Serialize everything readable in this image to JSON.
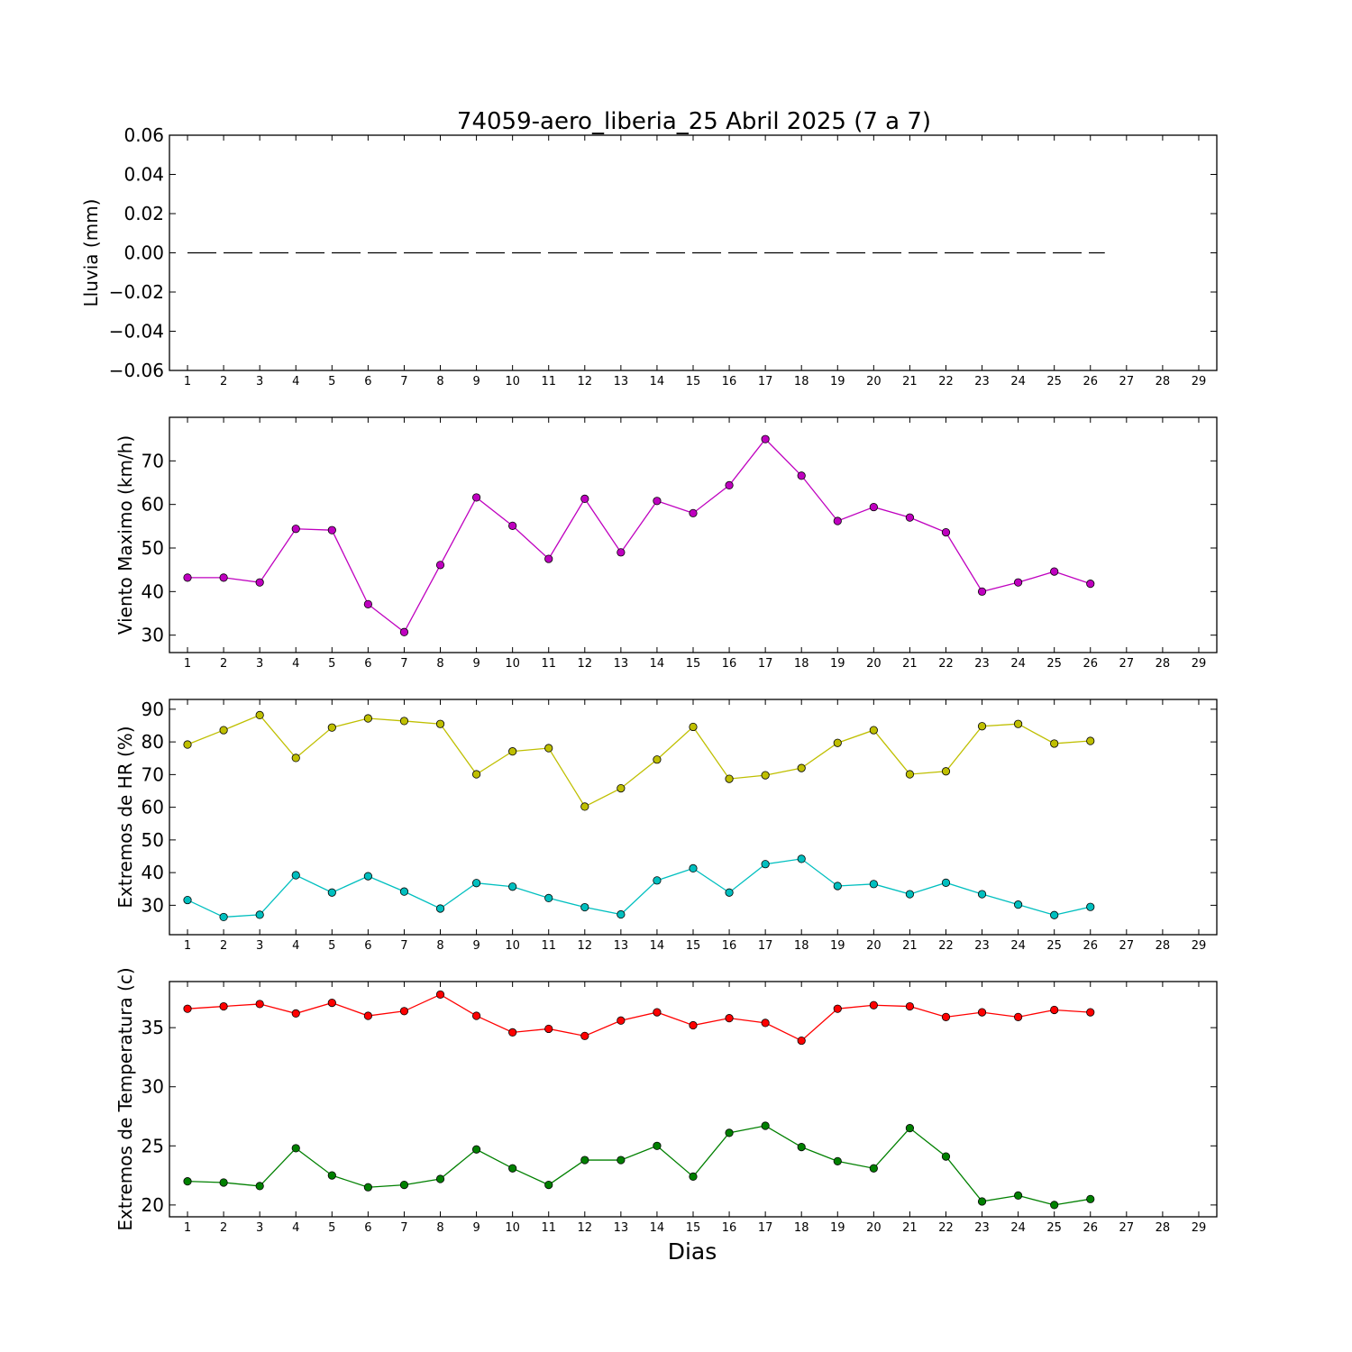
{
  "chart_data": {
    "title": "74059-aero_liberia_25 Abril 2025  (7 a 7)",
    "xlabel": "Dias",
    "x_ticks": [
      1,
      2,
      3,
      4,
      5,
      6,
      7,
      8,
      9,
      10,
      11,
      12,
      13,
      14,
      15,
      16,
      17,
      18,
      19,
      20,
      21,
      22,
      23,
      24,
      25,
      26,
      27,
      28,
      29
    ],
    "xlim": [
      0.5,
      29.5
    ],
    "panels": [
      {
        "type": "line",
        "ylabel": "Lluvia (mm)",
        "ylim": [
          -0.06,
          0.06
        ],
        "y_ticks": [
          -0.06,
          -0.04,
          -0.02,
          0.0,
          0.02,
          0.04,
          0.06
        ],
        "y_tick_labels": [
          "−0.06",
          "−0.04",
          "−0.02",
          "0.00",
          "0.02",
          "0.04",
          "0.06"
        ],
        "series": [
          {
            "color": "#000000",
            "style": "dashed",
            "marker": false,
            "x": [
              1,
              2,
              3,
              4,
              5,
              6,
              7,
              8,
              9,
              10,
              11,
              12,
              13,
              14,
              15,
              16,
              17,
              18,
              19,
              20,
              21,
              22,
              23,
              24,
              25,
              26
            ],
            "values": [
              0,
              0,
              0,
              0,
              0,
              0,
              0,
              0,
              0,
              0,
              0,
              0,
              0,
              0,
              0,
              0,
              0,
              0,
              0,
              0,
              0,
              0,
              0,
              0,
              0,
              0
            ]
          }
        ]
      },
      {
        "type": "line",
        "ylabel": "Viento Maximo (km/h)",
        "ylim": [
          26,
          80
        ],
        "y_ticks": [
          30,
          40,
          50,
          60,
          70
        ],
        "y_tick_labels": [
          "30",
          "40",
          "50",
          "60",
          "70"
        ],
        "series": [
          {
            "color": "#bf00bf",
            "style": "solid",
            "marker": true,
            "x": [
              1,
              2,
              3,
              4,
              5,
              6,
              7,
              8,
              9,
              10,
              11,
              12,
              13,
              14,
              15,
              16,
              17,
              18,
              19,
              20,
              21,
              22,
              23,
              24,
              25,
              26
            ],
            "values": [
              43.2,
              43.2,
              42.1,
              54.4,
              54.1,
              37.1,
              30.7,
              46.1,
              61.6,
              55.1,
              47.5,
              61.3,
              49.0,
              60.8,
              58.0,
              64.4,
              75.0,
              66.6,
              56.2,
              59.4,
              57.0,
              53.6,
              40.0,
              42.1,
              44.6,
              41.8
            ]
          }
        ]
      },
      {
        "type": "line",
        "ylabel": "Extremos de HR (%)",
        "ylim": [
          21,
          93
        ],
        "y_ticks": [
          30,
          40,
          50,
          60,
          70,
          80,
          90
        ],
        "y_tick_labels": [
          "30",
          "40",
          "50",
          "60",
          "70",
          "80",
          "90"
        ],
        "series": [
          {
            "color": "#bfbf00",
            "style": "solid",
            "marker": true,
            "x": [
              1,
              2,
              3,
              4,
              5,
              6,
              7,
              8,
              9,
              10,
              11,
              12,
              13,
              14,
              15,
              16,
              17,
              18,
              19,
              20,
              21,
              22,
              23,
              24,
              25,
              26
            ],
            "values": [
              79.2,
              83.6,
              88.2,
              75.1,
              84.4,
              87.2,
              86.4,
              85.5,
              70.1,
              77.1,
              78.1,
              60.2,
              65.8,
              74.6,
              84.6,
              68.7,
              69.8,
              72.0,
              79.7,
              83.6,
              70.1,
              71.0,
              84.8,
              85.5,
              79.5,
              80.3
            ]
          },
          {
            "color": "#00bfbf",
            "style": "solid",
            "marker": true,
            "x": [
              1,
              2,
              3,
              4,
              5,
              6,
              7,
              8,
              9,
              10,
              11,
              12,
              13,
              14,
              15,
              16,
              17,
              18,
              19,
              20,
              21,
              22,
              23,
              24,
              25,
              26
            ],
            "values": [
              31.6,
              26.4,
              27.1,
              39.2,
              33.9,
              38.9,
              34.2,
              29.0,
              36.8,
              35.7,
              32.2,
              29.4,
              27.2,
              37.6,
              41.3,
              33.9,
              42.6,
              44.2,
              35.9,
              36.5,
              33.4,
              36.9,
              33.4,
              30.2,
              27.0,
              29.5
            ]
          }
        ]
      },
      {
        "type": "line",
        "ylabel": "Extremos de Temperatura (c)",
        "ylim": [
          19,
          38.9
        ],
        "y_ticks": [
          20,
          25,
          30,
          35
        ],
        "y_tick_labels": [
          "20",
          "25",
          "30",
          "35"
        ],
        "series": [
          {
            "color": "#ff0000",
            "style": "solid",
            "marker": true,
            "x": [
              1,
              2,
              3,
              4,
              5,
              6,
              7,
              8,
              9,
              10,
              11,
              12,
              13,
              14,
              15,
              16,
              17,
              18,
              19,
              20,
              21,
              22,
              23,
              24,
              25,
              26
            ],
            "values": [
              36.6,
              36.8,
              37.0,
              36.2,
              37.1,
              36.0,
              36.4,
              37.8,
              36.0,
              34.6,
              34.9,
              34.3,
              35.6,
              36.3,
              35.2,
              35.8,
              35.4,
              33.9,
              36.6,
              36.9,
              36.8,
              35.9,
              36.3,
              35.9,
              36.5,
              36.3
            ]
          },
          {
            "color": "#008000",
            "style": "solid",
            "marker": true,
            "x": [
              1,
              2,
              3,
              4,
              5,
              6,
              7,
              8,
              9,
              10,
              11,
              12,
              13,
              14,
              15,
              16,
              17,
              18,
              19,
              20,
              21,
              22,
              23,
              24,
              25,
              26
            ],
            "values": [
              22.0,
              21.9,
              21.6,
              24.8,
              22.5,
              21.5,
              21.7,
              22.2,
              24.7,
              23.1,
              21.7,
              23.8,
              23.8,
              25.0,
              22.4,
              26.1,
              26.7,
              24.9,
              23.7,
              23.1,
              26.5,
              24.1,
              20.3,
              20.8,
              20.0,
              20.5
            ]
          }
        ]
      }
    ]
  }
}
